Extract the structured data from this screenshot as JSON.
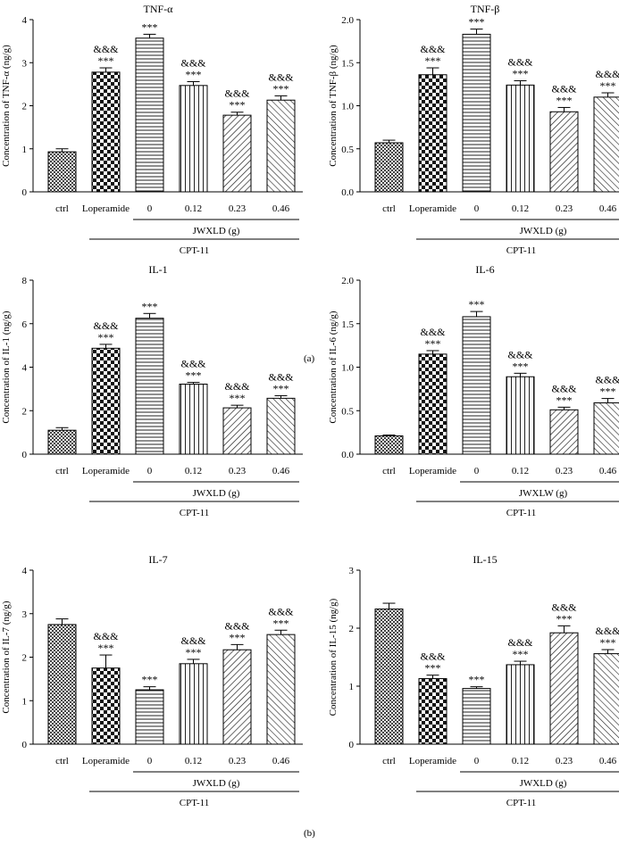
{
  "section_labels": {
    "a": "(a)",
    "b": "(b)"
  },
  "chart_data": [
    {
      "type": "bar",
      "title": "TNF-α",
      "ylabel": "Concentration of TNF-α (ng/g)",
      "categories": [
        "ctrl",
        "Loperamide",
        "0",
        "0.12",
        "0.23",
        "0.46"
      ],
      "values": [
        0.93,
        2.78,
        3.57,
        2.47,
        1.78,
        2.13
      ],
      "errors": [
        0.07,
        0.1,
        0.09,
        0.09,
        0.07,
        0.1
      ],
      "sig1": [
        "",
        "***",
        "***",
        "***",
        "***",
        "***"
      ],
      "sig2": [
        "",
        "&&&",
        "",
        "&&&",
        "&&&",
        "&&&"
      ],
      "ylim": [
        0,
        4
      ],
      "yticks": [
        "0",
        "1",
        "2",
        "3",
        "4"
      ],
      "group_label": "JWXLD (g)",
      "treatment_label": "CPT-11",
      "patterns": [
        "dcheck",
        "check",
        "hlines",
        "vlines",
        "diag",
        "adiag"
      ]
    },
    {
      "type": "bar",
      "title": "TNF-β",
      "ylabel": "Concentration of TNF-β (ng/g)",
      "categories": [
        "ctrl",
        "Loperamide",
        "0",
        "0.12",
        "0.23",
        "0.46"
      ],
      "values": [
        0.57,
        1.36,
        1.83,
        1.24,
        0.93,
        1.1
      ],
      "errors": [
        0.03,
        0.08,
        0.06,
        0.05,
        0.05,
        0.05
      ],
      "sig1": [
        "",
        "***",
        "***",
        "***",
        "***",
        "***"
      ],
      "sig2": [
        "",
        "&&&",
        "",
        "&&&",
        "&&&",
        "&&&"
      ],
      "ylim": [
        0,
        2.0
      ],
      "yticks": [
        "0.0",
        "0.5",
        "1.0",
        "1.5",
        "2.0"
      ],
      "group_label": "JWXLD (g)",
      "treatment_label": "CPT-11",
      "patterns": [
        "dcheck",
        "check",
        "hlines",
        "vlines",
        "diag",
        "adiag"
      ]
    },
    {
      "type": "bar",
      "title": "IL-1",
      "ylabel": "Concentration of IL-1 (ng/g)",
      "categories": [
        "ctrl",
        "Loperamide",
        "0",
        "0.12",
        "0.23",
        "0.46"
      ],
      "values": [
        1.1,
        4.87,
        6.25,
        3.22,
        2.13,
        2.57
      ],
      "errors": [
        0.12,
        0.18,
        0.22,
        0.08,
        0.12,
        0.12
      ],
      "sig1": [
        "",
        "***",
        "***",
        "***",
        "***",
        "***"
      ],
      "sig2": [
        "",
        "&&&",
        "",
        "&&&",
        "&&&",
        "&&&"
      ],
      "ylim": [
        0,
        8
      ],
      "yticks": [
        "0",
        "2",
        "4",
        "6",
        "8"
      ],
      "group_label": "JWXLD (g)",
      "treatment_label": "CPT-11",
      "patterns": [
        "dcheck",
        "check",
        "hlines",
        "vlines",
        "diag",
        "adiag"
      ]
    },
    {
      "type": "bar",
      "title": "IL-6",
      "ylabel": "Concentration of IL-6 (ng/g)",
      "categories": [
        "ctrl",
        "Loperamide",
        "0",
        "0.12",
        "0.23",
        "0.46"
      ],
      "values": [
        0.21,
        1.15,
        1.58,
        0.89,
        0.51,
        0.59
      ],
      "errors": [
        0.01,
        0.04,
        0.06,
        0.04,
        0.03,
        0.05
      ],
      "sig1": [
        "",
        "***",
        "***",
        "***",
        "***",
        "***"
      ],
      "sig2": [
        "",
        "&&&",
        "",
        "&&&",
        "&&&",
        "&&&"
      ],
      "ylim": [
        0,
        2.0
      ],
      "yticks": [
        "0.0",
        "0.5",
        "1.0",
        "1.5",
        "2.0"
      ],
      "group_label": "JWXLW (g)",
      "treatment_label": "CPT-11",
      "patterns": [
        "dcheck",
        "check",
        "hlines",
        "vlines",
        "diag",
        "adiag"
      ]
    },
    {
      "type": "bar",
      "title": "IL-7",
      "ylabel": "Concentration of IL-7 (ng/g)",
      "categories": [
        "ctrl",
        "Loperamide",
        "0",
        "0.12",
        "0.23",
        "0.46"
      ],
      "values": [
        2.75,
        1.75,
        1.25,
        1.85,
        2.17,
        2.52
      ],
      "errors": [
        0.13,
        0.3,
        0.07,
        0.1,
        0.12,
        0.1
      ],
      "sig1": [
        "",
        "***",
        "***",
        "***",
        "***",
        "***"
      ],
      "sig2": [
        "",
        "&&&",
        "",
        "&&&",
        "&&&",
        "&&&"
      ],
      "ylim": [
        0,
        4
      ],
      "yticks": [
        "0",
        "1",
        "2",
        "3",
        "4"
      ],
      "group_label": "JWXLD (g)",
      "treatment_label": "CPT-11",
      "patterns": [
        "dcheck",
        "check",
        "hlines",
        "vlines",
        "diag",
        "adiag"
      ]
    },
    {
      "type": "bar",
      "title": "IL-15",
      "ylabel": "Concentration of IL-15 (ng/g)",
      "categories": [
        "ctrl",
        "Loperamide",
        "0",
        "0.12",
        "0.23",
        "0.46"
      ],
      "values": [
        2.33,
        1.13,
        0.96,
        1.37,
        1.92,
        1.56
      ],
      "errors": [
        0.1,
        0.06,
        0.03,
        0.06,
        0.12,
        0.07
      ],
      "sig1": [
        "",
        "***",
        "***",
        "***",
        "***",
        "***"
      ],
      "sig2": [
        "",
        "&&&",
        "",
        "&&&",
        "&&&",
        "&&&"
      ],
      "ylim": [
        0,
        3
      ],
      "yticks": [
        "0",
        "1",
        "2",
        "3"
      ],
      "group_label": "JWXLD (g)",
      "treatment_label": "CPT-11",
      "patterns": [
        "dcheck",
        "check",
        "hlines",
        "vlines",
        "diag",
        "adiag"
      ]
    }
  ]
}
